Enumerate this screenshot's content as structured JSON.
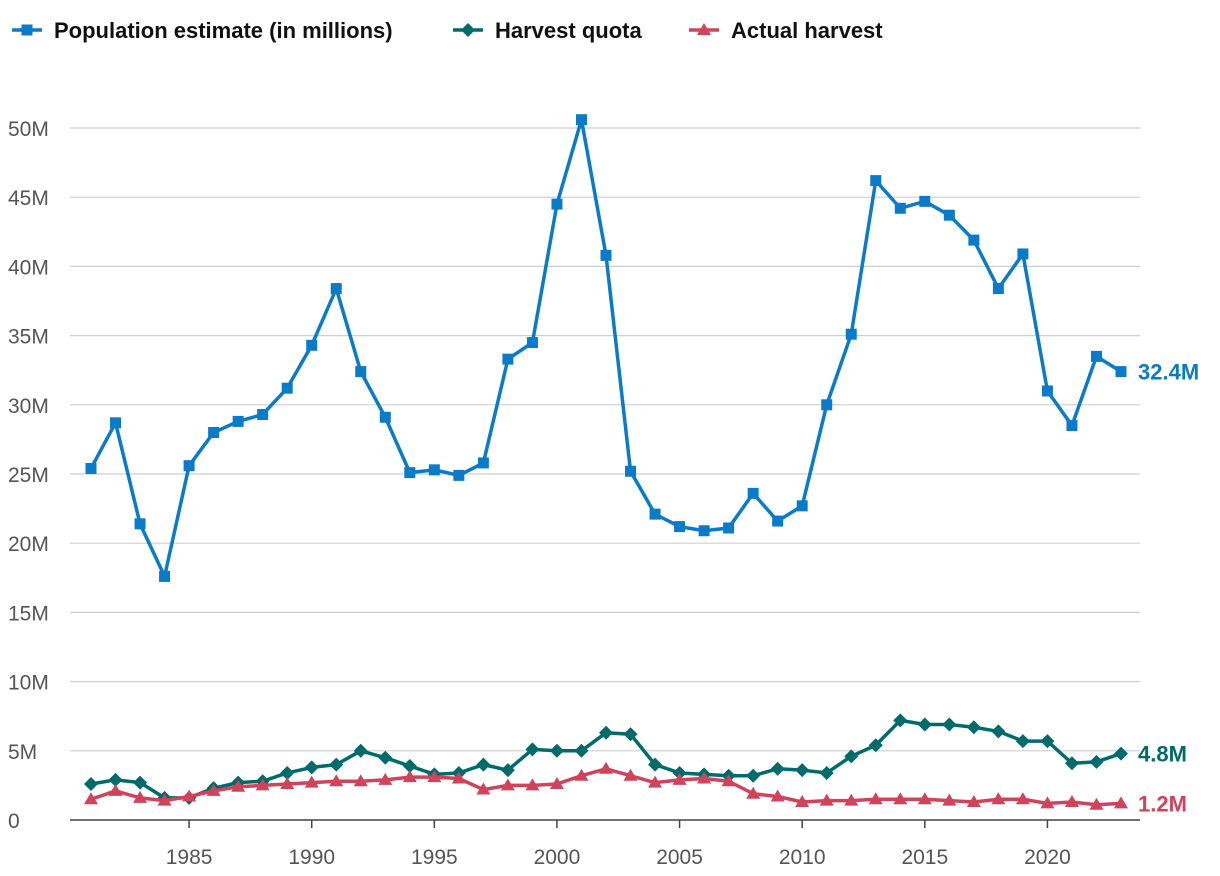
{
  "chart_data": {
    "type": "line",
    "title": "",
    "xlabel": "",
    "ylabel": "",
    "xlim": [
      1980.5,
      2023.8
    ],
    "ylim": [
      0,
      50
    ],
    "y_unit": "M",
    "y_ticks": [
      0,
      5,
      10,
      15,
      20,
      25,
      30,
      35,
      40,
      45,
      50
    ],
    "y_tick_labels": [
      "0",
      "5M",
      "10M",
      "15M",
      "20M",
      "25M",
      "30M",
      "35M",
      "40M",
      "45M",
      "50M"
    ],
    "x_ticks": [
      1985,
      1990,
      1995,
      2000,
      2005,
      2010,
      2015,
      2020
    ],
    "x_tick_labels": [
      "1985",
      "1990",
      "1995",
      "2000",
      "2005",
      "2010",
      "2015",
      "2020"
    ],
    "legend_position": "top-left",
    "x": [
      1981,
      1982,
      1983,
      1984,
      1985,
      1986,
      1987,
      1988,
      1989,
      1990,
      1991,
      1992,
      1993,
      1994,
      1995,
      1996,
      1997,
      1998,
      1999,
      2000,
      2001,
      2002,
      2003,
      2004,
      2005,
      2006,
      2007,
      2008,
      2009,
      2010,
      2011,
      2012,
      2013,
      2014,
      2015,
      2016,
      2017,
      2018,
      2019,
      2020,
      2021,
      2022,
      2023
    ],
    "series": [
      {
        "name": "Population estimate (in millions)",
        "color": "#0a7bc9",
        "marker": "square",
        "end_label": "32.4M",
        "values": [
          25.4,
          28.7,
          21.4,
          17.6,
          25.6,
          28.0,
          28.8,
          29.3,
          31.2,
          34.3,
          38.4,
          32.4,
          29.1,
          25.1,
          25.3,
          24.9,
          25.8,
          33.3,
          34.5,
          44.5,
          50.6,
          40.8,
          25.2,
          22.1,
          21.2,
          20.9,
          21.1,
          23.6,
          21.6,
          22.7,
          30.0,
          35.1,
          46.2,
          44.2,
          44.7,
          43.7,
          41.9,
          38.4,
          40.9,
          31.0,
          28.5,
          33.5,
          32.4
        ]
      },
      {
        "name": "Harvest quota",
        "color": "#006b6b",
        "marker": "diamond",
        "end_label": "4.8M",
        "values": [
          2.6,
          2.9,
          2.7,
          1.6,
          1.6,
          2.3,
          2.7,
          2.8,
          3.4,
          3.8,
          4.0,
          5.0,
          4.5,
          3.9,
          3.3,
          3.4,
          4.0,
          3.6,
          5.1,
          5.0,
          5.0,
          6.3,
          6.2,
          4.0,
          3.4,
          3.3,
          3.2,
          3.2,
          3.7,
          3.6,
          3.4,
          4.6,
          5.4,
          7.2,
          6.9,
          6.9,
          6.7,
          6.4,
          5.7,
          5.7,
          4.1,
          4.2,
          4.8
        ]
      },
      {
        "name": "Actual harvest",
        "color": "#d1435b",
        "marker": "triangle",
        "end_label": "1.2M",
        "values": [
          1.5,
          2.1,
          1.6,
          1.4,
          1.7,
          2.1,
          2.4,
          2.5,
          2.6,
          2.7,
          2.8,
          2.8,
          2.9,
          3.1,
          3.1,
          3.0,
          2.2,
          2.5,
          2.5,
          2.6,
          3.2,
          3.7,
          3.2,
          2.7,
          2.9,
          3.0,
          2.8,
          1.9,
          1.7,
          1.3,
          1.4,
          1.4,
          1.5,
          1.5,
          1.5,
          1.4,
          1.3,
          1.5,
          1.5,
          1.2,
          1.3,
          1.1,
          1.2
        ]
      }
    ]
  }
}
